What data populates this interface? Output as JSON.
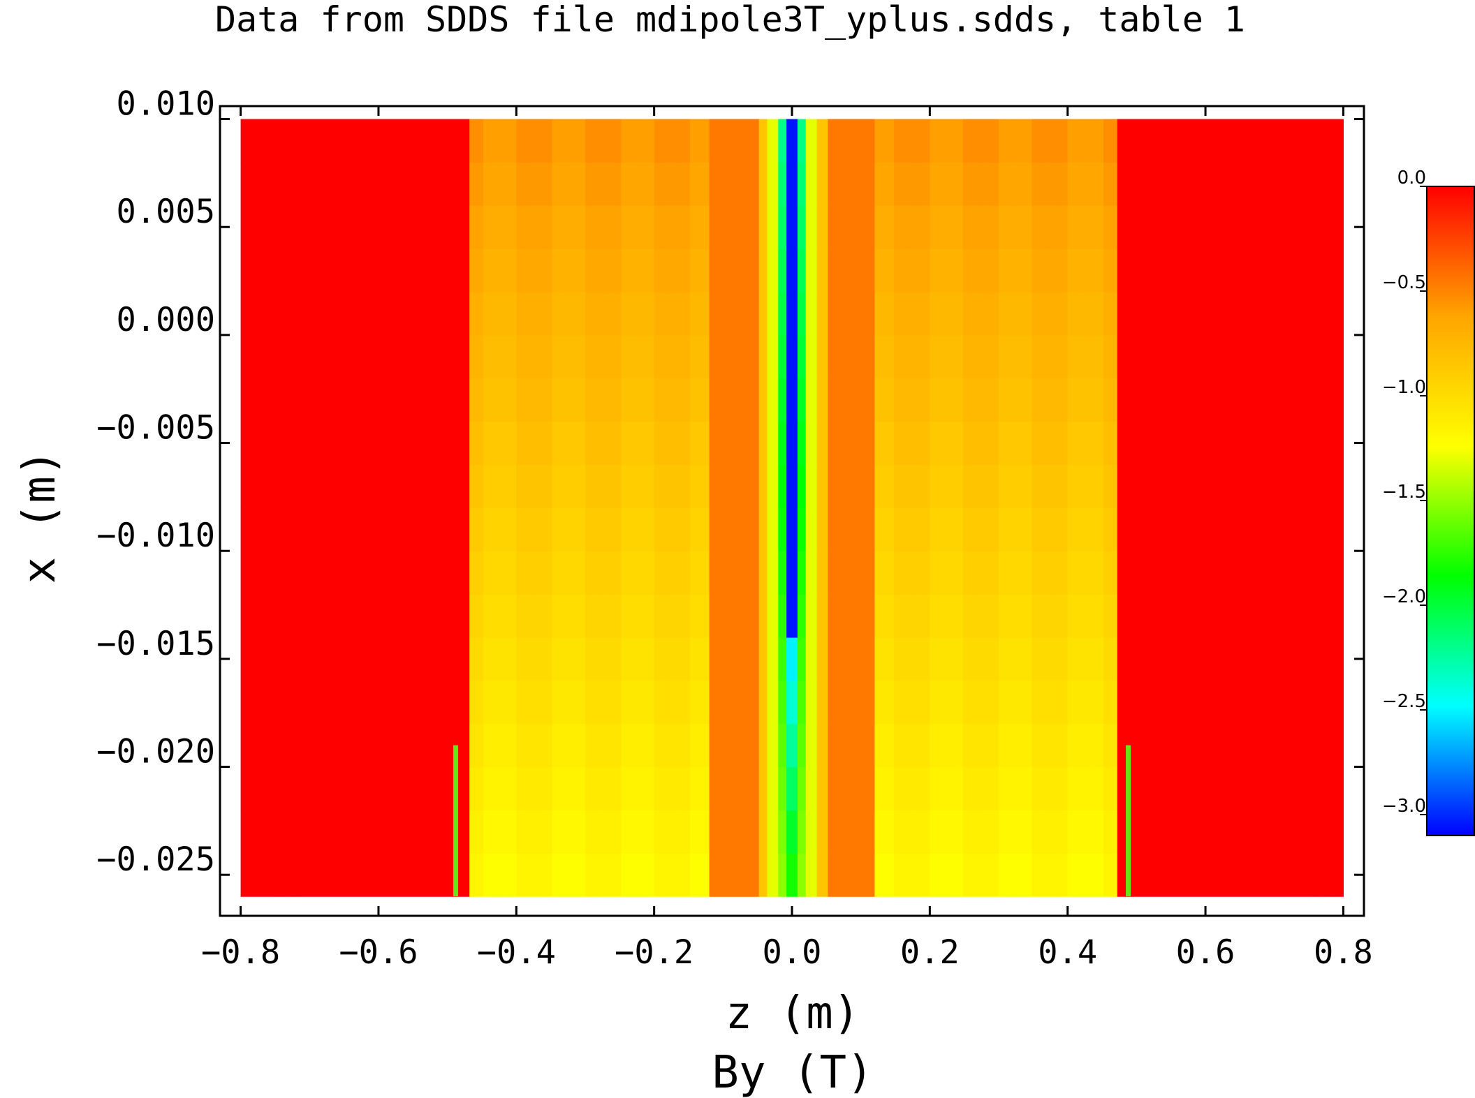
{
  "chart_data": {
    "type": "heatmap",
    "title": "Data from SDDS file mdipole3T_yplus.sdds, table 1",
    "xlabel": "z (m)",
    "ylabel": "x (m)",
    "colorbar_label": "By (T)",
    "xlim": [
      -0.83,
      0.83
    ],
    "ylim": [
      -0.0269,
      0.0106
    ],
    "x_ticks": [
      "-0.8",
      "-0.6",
      "-0.4",
      "-0.2",
      "0.0",
      "0.2",
      "0.4",
      "0.6",
      "0.8"
    ],
    "x_tick_values": [
      -0.8,
      -0.6,
      -0.4,
      -0.2,
      0.0,
      0.2,
      0.4,
      0.6,
      0.8
    ],
    "y_ticks": [
      "0.010",
      "0.005",
      "0.000",
      "-0.005",
      "-0.010",
      "-0.015",
      "-0.020",
      "-0.025"
    ],
    "y_tick_values": [
      0.01,
      0.005,
      0.0,
      -0.005,
      -0.01,
      -0.015,
      -0.02,
      -0.025
    ],
    "z_range": [
      -3.1,
      0.0
    ],
    "colorbar_ticks": [
      "0.0",
      "-0.5",
      "-1.0",
      "-1.5",
      "-2.0",
      "-2.5",
      "-3.0"
    ],
    "colorbar_tick_values": [
      0.0,
      -0.5,
      -1.0,
      -1.5,
      -2.0,
      -2.5,
      -3.0
    ],
    "data_extent": {
      "z": [
        -0.8,
        0.8
      ],
      "x": [
        -0.026,
        0.01
      ]
    },
    "field_profile": {
      "description_z_segments_m": [
        {
          "z": [
            -0.8,
            -0.47
          ],
          "By": 0.0
        },
        {
          "z": [
            -0.47,
            -0.12
          ],
          "By_top": -0.55,
          "By_bottom": -1.2
        },
        {
          "z": [
            -0.12,
            -0.05
          ],
          "By": -0.45
        },
        {
          "z": [
            -0.05,
            0.05
          ],
          "By_center_top": -3.0,
          "By_center_bottom": -1.7
        },
        {
          "z": [
            0.05,
            0.12
          ],
          "By": -0.45
        },
        {
          "z": [
            0.12,
            0.47
          ],
          "By_top": -0.55,
          "By_bottom": -1.2
        },
        {
          "z": [
            0.47,
            0.8
          ],
          "By": 0.0
        }
      ]
    },
    "markers": [
      {
        "z": -0.488,
        "x": [
          -0.026,
          -0.019
        ],
        "color": "#66e619"
      },
      {
        "z": 0.488,
        "x": [
          -0.026,
          -0.019
        ],
        "color": "#66e619"
      }
    ],
    "colormap": [
      "#0000ff",
      "#00ffff",
      "#00ff00",
      "#ffff00",
      "#ffa500",
      "#ff0000"
    ]
  }
}
